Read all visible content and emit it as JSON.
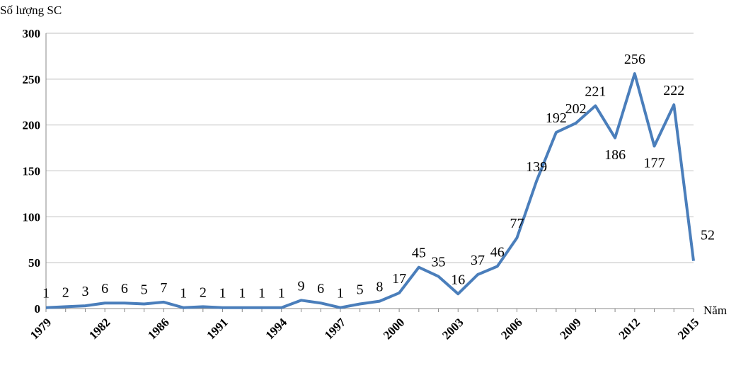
{
  "chart_data": {
    "type": "line",
    "y_label": "Số lượng SC",
    "x_label": "Năm",
    "categories": [
      "1979",
      null,
      null,
      "1982",
      null,
      null,
      "1986",
      null,
      null,
      "1991",
      null,
      null,
      "1994",
      null,
      null,
      "1997",
      null,
      null,
      "2000",
      null,
      null,
      "2003",
      null,
      null,
      "2006",
      null,
      null,
      "2009",
      null,
      null,
      "2012",
      null,
      null,
      "2015"
    ],
    "series": [
      {
        "color": "#4a7ebb",
        "values": [
          1,
          2,
          3,
          6,
          6,
          5,
          7,
          1,
          2,
          1,
          1,
          1,
          1,
          9,
          6,
          1,
          5,
          8,
          17,
          45,
          35,
          16,
          37,
          46,
          77,
          139,
          192,
          202,
          221,
          186,
          256,
          177,
          222,
          52
        ]
      }
    ],
    "ylim": [
      0,
      300
    ],
    "yticks": [
      0,
      50,
      100,
      150,
      200,
      250,
      300
    ],
    "grid": true
  }
}
